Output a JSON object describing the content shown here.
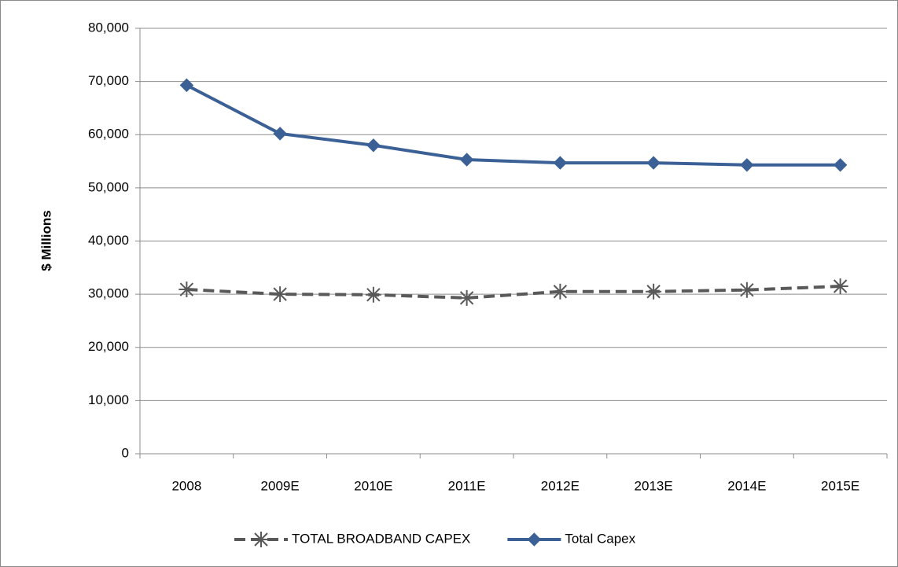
{
  "chart_data": {
    "type": "line",
    "y_label": "$ Millions",
    "categories": [
      "2008",
      "2009E",
      "2010E",
      "2011E",
      "2012E",
      "2013E",
      "2014E",
      "2015E"
    ],
    "series": [
      {
        "name": "TOTAL BROADBAND CAPEX",
        "color": "#595959",
        "dash": true,
        "marker": "star",
        "values": [
          30900,
          30000,
          29900,
          29300,
          30500,
          30500,
          30800,
          31500
        ]
      },
      {
        "name": "Total Capex",
        "color": "#3a6096",
        "dash": false,
        "marker": "diamond",
        "values": [
          69300,
          60200,
          58000,
          55300,
          54700,
          54700,
          54300,
          54300
        ]
      }
    ],
    "ylim": [
      0,
      80000
    ],
    "yticks": [
      0,
      {
        "value": 10000,
        "label": "10,000"
      },
      {
        "value": 20000,
        "label": "20,000"
      },
      {
        "value": 30000,
        "label": "30,000"
      },
      {
        "value": 40000,
        "label": "40,000"
      },
      {
        "value": 50000,
        "label": "50,000"
      },
      {
        "value": 60000,
        "label": "60,000"
      },
      {
        "value": 70000,
        "label": "70,000"
      },
      {
        "value": 80000,
        "label": "80,000"
      }
    ],
    "grid": true,
    "legend": "bottom"
  }
}
